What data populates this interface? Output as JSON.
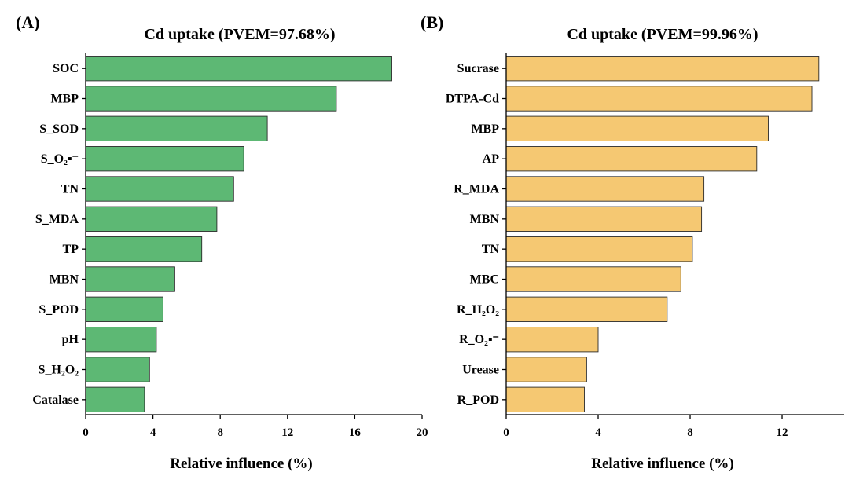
{
  "chart_data": [
    {
      "type": "bar",
      "orientation": "horizontal",
      "panel_label": "(A)",
      "title": "Cd uptake (PVEM=97.68%)",
      "xlabel": "Relative influence (%)",
      "ylabel": "",
      "categories": [
        "SOC",
        "MBP",
        "S_SOD",
        "S_O₂▪⁻",
        "TN",
        "S_MDA",
        "TP",
        "MBN",
        "S_POD",
        "pH",
        "S_H₂O₂",
        "Catalase"
      ],
      "values": [
        18.2,
        14.9,
        10.8,
        9.4,
        8.8,
        7.8,
        6.9,
        5.3,
        4.6,
        4.2,
        3.8,
        3.5
      ],
      "xlim": [
        0,
        20
      ],
      "xticks": [
        "0",
        "4",
        "8",
        "12",
        "16",
        "20"
      ],
      "grid": false,
      "color": "#5db874"
    },
    {
      "type": "bar",
      "orientation": "horizontal",
      "panel_label": "(B)",
      "title": "Cd uptake (PVEM=99.96%)",
      "xlabel": "Relative influence (%)",
      "ylabel": "",
      "categories": [
        "Sucrase",
        "DTPA-Cd",
        "MBP",
        "AP",
        "R_MDA",
        "MBN",
        "TN",
        "MBC",
        "R_H₂O₂",
        "R_O₂▪⁻",
        "Urease",
        "R_POD"
      ],
      "values": [
        13.6,
        13.3,
        11.4,
        10.9,
        8.6,
        8.5,
        8.1,
        7.6,
        7.0,
        4.0,
        3.5,
        3.4
      ],
      "xlim": [
        0,
        14.7
      ],
      "xticks": [
        "0",
        "4",
        "8",
        "12"
      ],
      "grid": false,
      "color": "#f5c872"
    }
  ]
}
